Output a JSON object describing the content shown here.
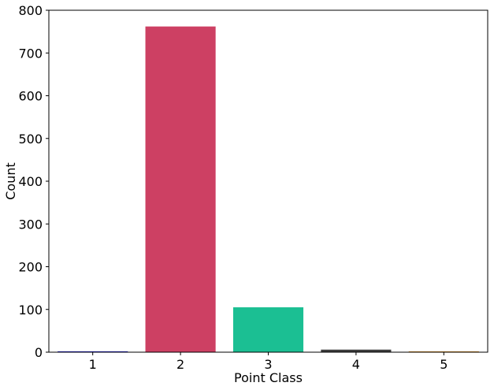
{
  "chart_data": {
    "type": "bar",
    "title": "",
    "xlabel": "Point Class",
    "ylabel": "Count",
    "categories": [
      "1",
      "2",
      "3",
      "4",
      "5"
    ],
    "values": [
      2,
      762,
      105,
      6,
      1
    ],
    "colors": [
      "#1f1fd1",
      "#cd4063",
      "#1bbf93",
      "#3d3d3d",
      "#d98c1a"
    ],
    "ylim": [
      0,
      800
    ],
    "yticks": [
      0,
      100,
      200,
      300,
      400,
      500,
      600,
      700,
      800
    ],
    "grid": false,
    "legend": "none"
  }
}
